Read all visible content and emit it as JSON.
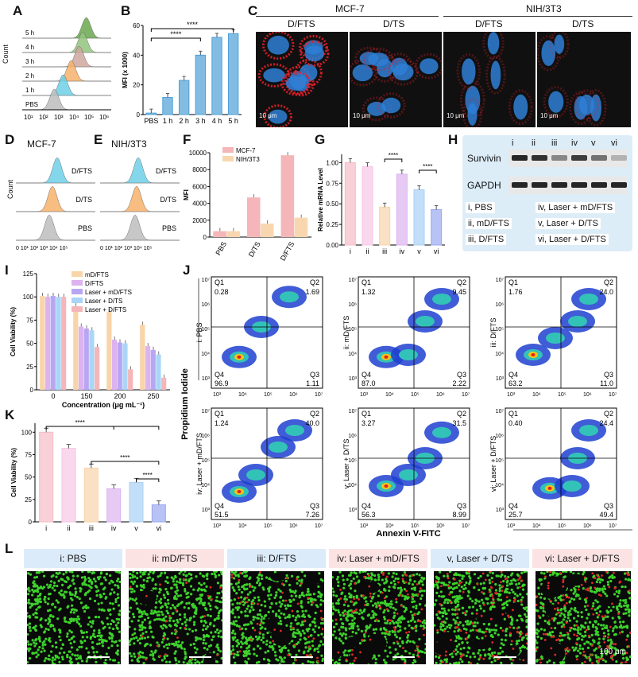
{
  "panels": {
    "A": {
      "label": "A",
      "ylabel": "Count",
      "groups": [
        "5 h",
        "4 h",
        "3 h",
        "2 h",
        "1 h",
        "PBS"
      ],
      "colors": [
        "#6aa84f",
        "#93c47d",
        "#cfa7a0",
        "#f6b26b",
        "#6fd0e8",
        "#bdbdbd"
      ],
      "xticks": [
        "10¹",
        "10²",
        "10³",
        "10⁴",
        "10⁵",
        "10⁶"
      ]
    },
    "B": {
      "label": "B"
    },
    "C": {
      "label": "C",
      "cell1": "MCF-7",
      "cell2": "NIH/3T3",
      "sub": [
        "D/FTS",
        "D/TS",
        "D/FTS",
        "D/TS"
      ],
      "scale": "10 μm"
    },
    "D": {
      "label": "D",
      "title": "MCF-7",
      "ylabel": "Count",
      "groups": [
        "D/FTS",
        "D/TS",
        "PBS"
      ],
      "xticks": "0 10¹ 10² 10³ 10⁴ 10⁵"
    },
    "E": {
      "label": "E",
      "title": "NIH/3T3",
      "groups": [
        "D/FTS",
        "D/TS",
        "PBS"
      ],
      "xticks": "0 10¹ 10² 10³ 10⁴ 10⁵"
    },
    "F": {
      "label": "F"
    },
    "G": {
      "label": "G"
    },
    "H": {
      "label": "H",
      "lanes": [
        "i",
        "ii",
        "iii",
        "iv",
        "v",
        "vi"
      ],
      "bands": [
        "Survivin",
        "GAPDH"
      ],
      "legend": [
        "i, PBS",
        "ii, mD/FTS",
        "iii, D/FTS",
        "iv, Laser + mD/FTS",
        "v, Laser + D/TS",
        "vi, Laser + D/FTS"
      ]
    },
    "I": {
      "label": "I"
    },
    "J": {
      "label": "J",
      "ylabel": "Propidium Iodide",
      "xlabel": "Annexin V-FITC",
      "xticks": [
        "10³",
        "10⁴",
        "10⁵",
        "10⁶",
        "10⁷"
      ],
      "yticks": [
        "10⁷",
        "10⁶",
        "10⁵",
        "10⁴",
        "10³"
      ],
      "plots": [
        {
          "name": "i: PBS",
          "q1": "0.28",
          "q2": "1.69",
          "q3": "1.11",
          "q4": "96.9"
        },
        {
          "name": "ii: mD/FTS",
          "q1": "1.32",
          "q2": "9.45",
          "q3": "2.22",
          "q4": "87.0"
        },
        {
          "name": "iii: D/FTS",
          "q1": "1.76",
          "q2": "24.0",
          "q3": "11.0",
          "q4": "63.2"
        },
        {
          "name": "iv: Laser + mD/FTS",
          "q1": "1.24",
          "q2": "40.0",
          "q3": "7.26",
          "q4": "51.5"
        },
        {
          "name": "v: Laser + D/TS",
          "q1": "3.27",
          "q2": "31.5",
          "q3": "8.99",
          "q4": "56.3"
        },
        {
          "name": "vi: Laser + D/FTS",
          "q1": "0.40",
          "q2": "24.4",
          "q3": "49.4",
          "q4": "25.7"
        }
      ]
    },
    "K": {
      "label": "K"
    },
    "L": {
      "label": "L",
      "titles": [
        "i: PBS",
        "ii: mD/FTS",
        "iii: D/FTS",
        "iv: Laser + mD/FTS",
        "v, Laser + D/TS",
        "vi: Laser + D/FTS"
      ],
      "scale": "100 μm"
    }
  },
  "chart_data": [
    {
      "id": "B",
      "type": "bar",
      "categories": [
        "PBS",
        "1 h",
        "2 h",
        "3 h",
        "4 h",
        "5 h"
      ],
      "values": [
        1,
        11.5,
        23,
        40,
        52,
        54.5
      ],
      "ylabel": "MFI (x 1000)",
      "ylim": [
        0,
        60
      ],
      "yticks": [
        0,
        20,
        40,
        60
      ],
      "sig": [
        "****",
        "****"
      ],
      "color": "#4f9fd6"
    },
    {
      "id": "F",
      "type": "bar",
      "categories": [
        "PBS",
        "D/TS",
        "D/FTS"
      ],
      "series": [
        {
          "name": "MCF-7",
          "values": [
            700,
            4700,
            9700
          ],
          "color": "#f4b6b8"
        },
        {
          "name": "NIH/3T3",
          "values": [
            700,
            1600,
            2300
          ],
          "color": "#f8d7b0"
        }
      ],
      "ylabel": "MFI",
      "ylim": [
        0,
        10000
      ],
      "yticks": [
        0,
        2000,
        4000,
        6000,
        8000,
        10000
      ]
    },
    {
      "id": "G",
      "type": "bar",
      "categories": [
        "i",
        "ii",
        "iii",
        "iv",
        "v",
        "vi"
      ],
      "values": [
        1.0,
        0.95,
        0.46,
        0.86,
        0.67,
        0.43
      ],
      "ylabel": "Relative mRNA Level",
      "ylim": [
        0,
        1.1
      ],
      "yticks": [
        "0.00",
        "0.25",
        "0.50",
        "0.75",
        "1.00"
      ],
      "colors": [
        "#f7bcc6",
        "#f6c6e6",
        "#f8d4a9",
        "#dcb3f0",
        "#a9d0f5",
        "#9aa8f0"
      ],
      "sig": [
        "****",
        "****"
      ]
    },
    {
      "id": "I",
      "type": "bar",
      "categories": [
        "0",
        "150",
        "200",
        "250"
      ],
      "series": [
        {
          "name": "mD/FTS",
          "values": [
            101,
            90,
            84,
            70
          ],
          "color": "#f8d4a9"
        },
        {
          "name": "D/FTS",
          "values": [
            100,
            68,
            54,
            47
          ],
          "color": "#dcb3f0"
        },
        {
          "name": "Laser + mD/FTS",
          "values": [
            101,
            66,
            51,
            43
          ],
          "color": "#b9a6f2"
        },
        {
          "name": "Laser + D/TS",
          "values": [
            100,
            64,
            50,
            38
          ],
          "color": "#a9d6f7"
        },
        {
          "name": "Laser + D/FTS",
          "values": [
            100,
            46,
            22,
            13
          ],
          "color": "#f4b6b8"
        }
      ],
      "xlabel": "Concentration (μg mL⁻¹)",
      "ylabel": "Cell Viability (%)",
      "ylim": [
        0,
        125
      ],
      "yticks": [
        0,
        25,
        50,
        75,
        100,
        125
      ]
    },
    {
      "id": "K",
      "type": "bar",
      "categories": [
        "i",
        "ii",
        "iii",
        "iv",
        "v",
        "vi"
      ],
      "values": [
        100,
        82,
        60,
        37,
        44,
        19
      ],
      "ylabel": "Cell Viability (%)",
      "ylim": [
        0,
        110
      ],
      "yticks": [
        0,
        25,
        50,
        75,
        100
      ],
      "colors": [
        "#f7bcc6",
        "#f6c6e6",
        "#f8d4a9",
        "#dcb3f0",
        "#a9d0f5",
        "#9aa8f0"
      ],
      "sig": [
        "****",
        "****",
        "****"
      ]
    }
  ]
}
